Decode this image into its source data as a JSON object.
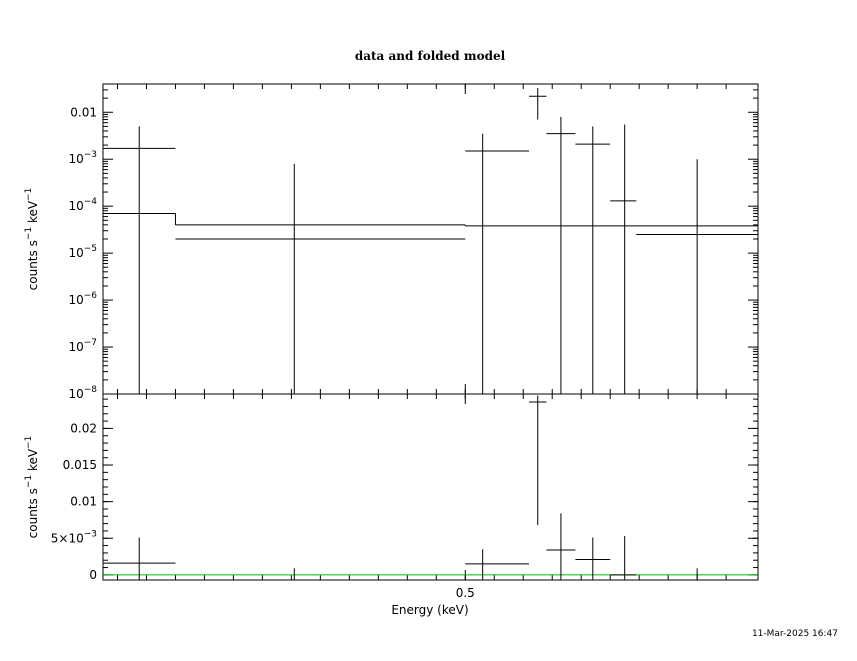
{
  "chart_data": {
    "type": "scatter",
    "title": "data and folded model",
    "xlabel": "Energy (keV)",
    "timestamp": "11-Mar-2025 16:47",
    "x_ticks": [
      {
        "value": 0.5,
        "label": "0.5"
      }
    ],
    "colors": {
      "data": "#000000",
      "model": "#000000",
      "residual_zero": "#00c000"
    },
    "panels": [
      {
        "id": "top",
        "ylabel_main": "counts s",
        "ylabel_sup1": "−1",
        "ylabel_mid": " keV",
        "ylabel_sup2": "−1",
        "yscale": "log",
        "ylim": [
          1e-08,
          0.04
        ],
        "y_ticks": [
          {
            "value": 0.01,
            "base": "0.01",
            "exp": ""
          },
          {
            "value": 0.001,
            "base": "10",
            "exp": "−3"
          },
          {
            "value": 0.0001,
            "base": "10",
            "exp": "−4"
          },
          {
            "value": 1e-05,
            "base": "10",
            "exp": "−5"
          },
          {
            "value": 1e-06,
            "base": "10",
            "exp": "−6"
          },
          {
            "value": 1e-07,
            "base": "10",
            "exp": "−7"
          },
          {
            "value": 1e-08,
            "base": "10",
            "exp": "−8"
          }
        ],
        "data": [
          {
            "xlo": 0.375,
            "xhi": 0.4,
            "xc": 0.3875,
            "y": 0.0017,
            "ylo": 1e-08,
            "yhi": 0.005
          },
          {
            "xlo": 0.5,
            "xhi": 0.522,
            "xc": 0.506,
            "y": 0.0015,
            "ylo": 1e-08,
            "yhi": 0.0035
          },
          {
            "xlo": 0.522,
            "xhi": 0.528,
            "xc": 0.525,
            "y": 0.022,
            "ylo": 0.007,
            "yhi": 0.033
          },
          {
            "xlo": 0.528,
            "xhi": 0.538,
            "xc": 0.533,
            "y": 0.0035,
            "ylo": 1e-08,
            "yhi": 0.008
          },
          {
            "xlo": 0.538,
            "xhi": 0.55,
            "xc": 0.544,
            "y": 0.0021,
            "ylo": 1e-08,
            "yhi": 0.005
          },
          {
            "xlo": 0.55,
            "xhi": 0.559,
            "xc": 0.555,
            "y": 0.00013,
            "ylo": 1e-08,
            "yhi": 0.0055
          },
          {
            "xlo": 0.559,
            "xhi": 0.601,
            "xc": 0.58,
            "y": 2.5e-05,
            "ylo": 1e-08,
            "yhi": 0.001
          }
        ],
        "lower_limits": [
          {
            "x": 0.441,
            "yhi": 0.0008
          }
        ],
        "model": [
          {
            "xlo": 0.375,
            "xhi": 0.4,
            "y": 7e-05
          },
          {
            "xlo": 0.4,
            "xhi": 0.5,
            "y": 4e-05
          },
          {
            "xlo": 0.5,
            "xhi": 0.601,
            "y": 3.8e-05
          }
        ],
        "model_extra": [
          {
            "xlo": 0.4,
            "xhi": 0.5,
            "y": 2e-05
          }
        ]
      },
      {
        "id": "bottom",
        "ylabel_main": "counts s",
        "ylabel_sup1": "−1",
        "ylabel_mid": " keV",
        "ylabel_sup2": "−1",
        "yscale": "linear",
        "ylim": [
          -0.0007,
          0.0247
        ],
        "y_ticks": [
          {
            "value": 0.02,
            "base": "0.02",
            "exp": ""
          },
          {
            "value": 0.015,
            "base": "0.015",
            "exp": ""
          },
          {
            "value": 0.01,
            "base": "0.01",
            "exp": ""
          },
          {
            "value": 0.005,
            "base": "5×10",
            "exp": "−3"
          },
          {
            "value": 0,
            "base": "0",
            "exp": ""
          }
        ],
        "data": [
          {
            "xlo": 0.375,
            "xhi": 0.4,
            "xc": 0.3875,
            "y": 0.0016,
            "ylo": -0.0007,
            "yhi": 0.0051
          },
          {
            "xlo": 0.5,
            "xhi": 0.522,
            "xc": 0.506,
            "y": 0.0015,
            "ylo": -0.0007,
            "yhi": 0.0035
          },
          {
            "xlo": 0.522,
            "xhi": 0.528,
            "xc": 0.525,
            "y": 0.0236,
            "ylo": 0.0068,
            "yhi": 0.0245
          },
          {
            "xlo": 0.528,
            "xhi": 0.538,
            "xc": 0.533,
            "y": 0.0034,
            "ylo": -0.0007,
            "yhi": 0.0084
          },
          {
            "xlo": 0.538,
            "xhi": 0.55,
            "xc": 0.544,
            "y": 0.0021,
            "ylo": -0.0007,
            "yhi": 0.0051
          },
          {
            "xlo": 0.55,
            "xhi": 0.559,
            "xc": 0.555,
            "y": 0.0,
            "ylo": -0.0007,
            "yhi": 0.0053
          }
        ],
        "lower_limits": [
          {
            "x": 0.441,
            "yhi": 0.0009
          },
          {
            "x": 0.58,
            "yhi": 0.0009
          }
        ],
        "zero_line": 0.0
      }
    ]
  }
}
